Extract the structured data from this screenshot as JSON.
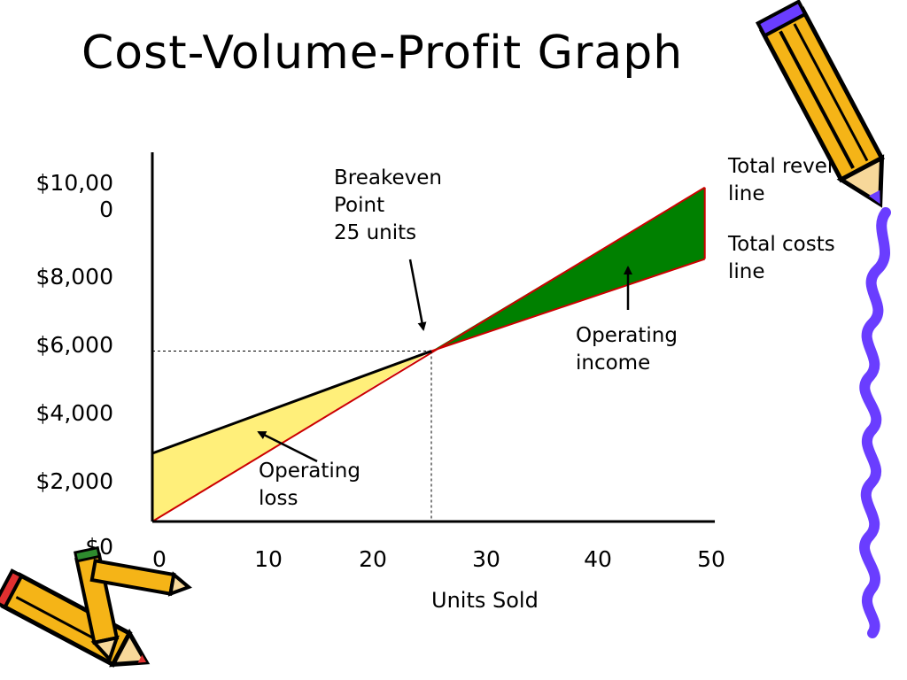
{
  "slide": {
    "title": "Cost-Volume-Profit Graph"
  },
  "chart_data": {
    "type": "area",
    "title": "Cost-Volume-Profit Graph",
    "xlabel": "Units Sold",
    "ylabel": "",
    "x_ticks": [
      0,
      10,
      20,
      30,
      40,
      50
    ],
    "x_tick_labels": [
      "0",
      "10",
      "20",
      "30",
      "40",
      "50"
    ],
    "y_ticks": [
      0,
      2000,
      4000,
      6000,
      8000,
      10000
    ],
    "y_tick_labels": [
      "$0",
      "$2,000",
      "$4,000",
      "$6,000",
      "$8,000",
      "$10,00\n0"
    ],
    "xlim": [
      0,
      50
    ],
    "ylim": [
      0,
      11000
    ],
    "series": [
      {
        "name": "Total revenues line",
        "x": [
          0,
          49.5
        ],
        "y": [
          0,
          9800
        ]
      },
      {
        "name": "Total costs line",
        "x": [
          0,
          49.5
        ],
        "y": [
          2000,
          7700
        ]
      }
    ],
    "breakeven": {
      "units": 25,
      "amount": 5000
    },
    "regions": {
      "loss": "Operating loss",
      "income": "Operating income"
    },
    "annotations": {
      "breakeven_label": "Breakeven\nPoint\n25 units",
      "revenue_line_label": "Total revenues\nline",
      "cost_line_label": "Total costs\nline",
      "income_label": "Operating\nincome",
      "loss_label": "Operating\nloss"
    },
    "colors": {
      "loss_fill": "#FFEF7A",
      "income_fill": "#008000",
      "revenue_line": "#CC0000",
      "cost_line": "#000000",
      "axis": "#000000",
      "guide": "#000000"
    },
    "grid": false,
    "legend": "none"
  },
  "decorations": {
    "icons": [
      "pencil-icon",
      "pencil-icon",
      "pencil-icon",
      "purple-squiggle-border"
    ],
    "pencil_color": "#F5B417",
    "squiggle_color": "#6A3DFF"
  }
}
